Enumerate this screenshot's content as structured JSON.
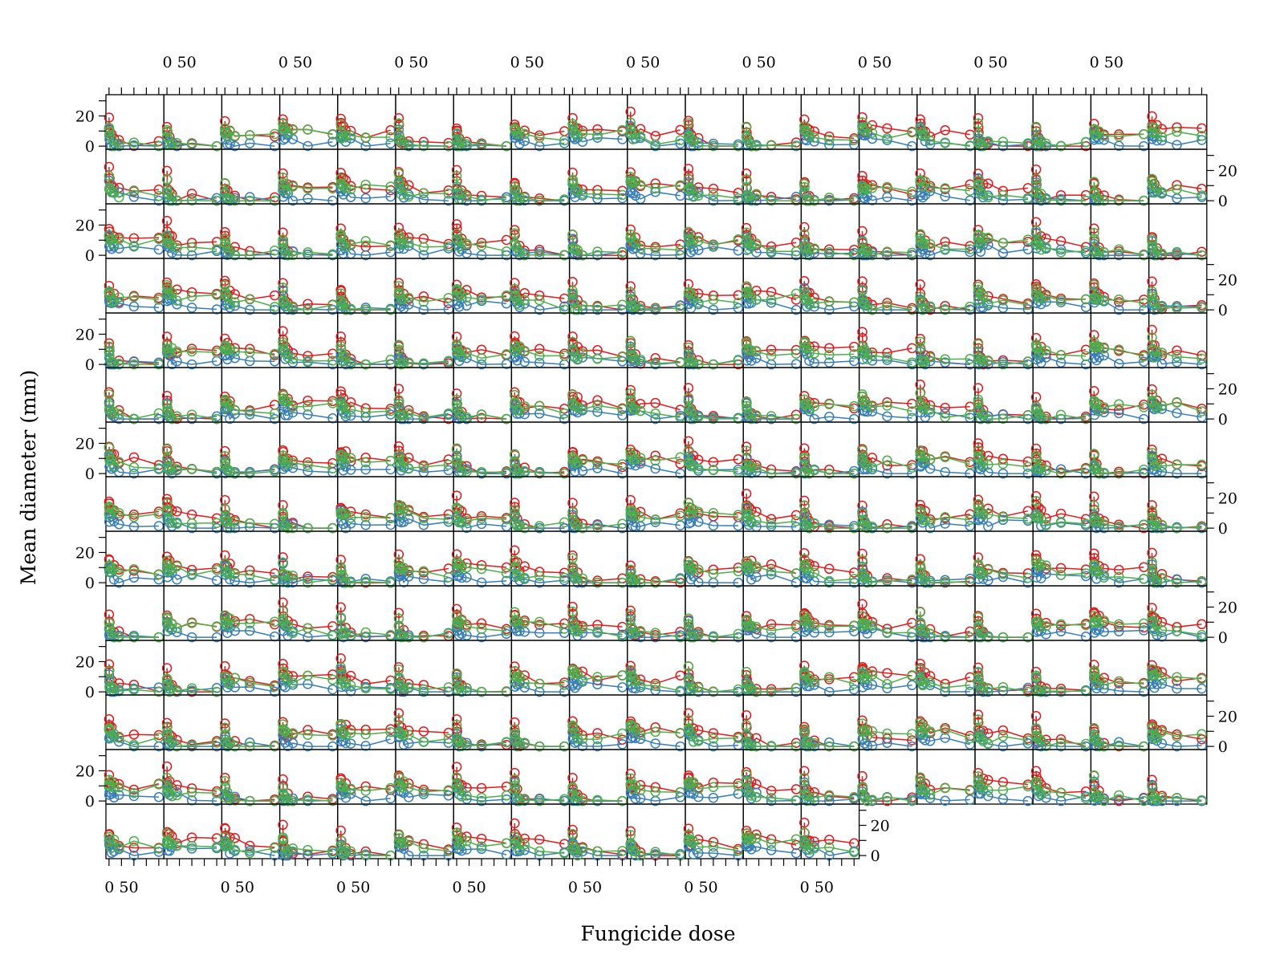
{
  "chart_data": {
    "type": "line",
    "layout": "trellis",
    "panel_grid": {
      "columns": 19,
      "rows": 14,
      "last_row_panels": 13
    },
    "xlabel": "Fungicide dose",
    "ylabel": "Mean diameter (mm)",
    "x_tick_labels": [
      "0",
      "50"
    ],
    "y_tick_labels": [
      "0",
      "20"
    ],
    "x_ticks": [
      0,
      50
    ],
    "y_ticks": [
      0,
      20
    ],
    "xlim": [
      -3,
      107
    ],
    "ylim": [
      -1,
      33
    ],
    "x_doses": [
      0,
      0.5,
      1,
      5,
      10,
      20,
      50,
      100
    ],
    "series_colors": {
      "red": "#e31a1c",
      "blue": "#377eb8",
      "green": "#4daf4a"
    },
    "panel_style_note": "each panel shows three dose-response series (red, blue, green) as lines with open circle markers",
    "panel_profiles": [
      {
        "red": [
          18,
          12,
          8,
          5,
          4,
          3,
          2,
          1
        ],
        "blue": [
          10,
          5,
          3,
          1,
          0,
          0,
          0,
          0
        ],
        "green": [
          14,
          8,
          5,
          3,
          2,
          2,
          1,
          1
        ]
      },
      {
        "red": [
          16,
          12,
          10,
          9,
          9,
          8,
          8,
          7
        ],
        "blue": [
          9,
          7,
          5,
          4,
          3,
          2,
          1,
          0
        ],
        "green": [
          13,
          11,
          9,
          8,
          8,
          7,
          7,
          6
        ]
      },
      {
        "red": [
          20,
          15,
          12,
          11,
          10,
          9,
          8,
          8
        ],
        "blue": [
          12,
          8,
          6,
          5,
          4,
          3,
          1,
          0
        ],
        "green": [
          15,
          10,
          8,
          7,
          6,
          5,
          4,
          3
        ]
      },
      {
        "red": [
          14,
          10,
          7,
          4,
          2,
          1,
          0,
          0
        ],
        "blue": [
          8,
          4,
          2,
          1,
          0,
          0,
          0,
          0
        ],
        "green": [
          11,
          7,
          4,
          2,
          1,
          0,
          0,
          0
        ]
      },
      {
        "red": [
          17,
          14,
          13,
          12,
          12,
          11,
          10,
          9
        ],
        "blue": [
          10,
          7,
          6,
          5,
          5,
          4,
          3,
          2
        ],
        "green": [
          14,
          12,
          11,
          10,
          10,
          9,
          8,
          8
        ]
      }
    ]
  }
}
